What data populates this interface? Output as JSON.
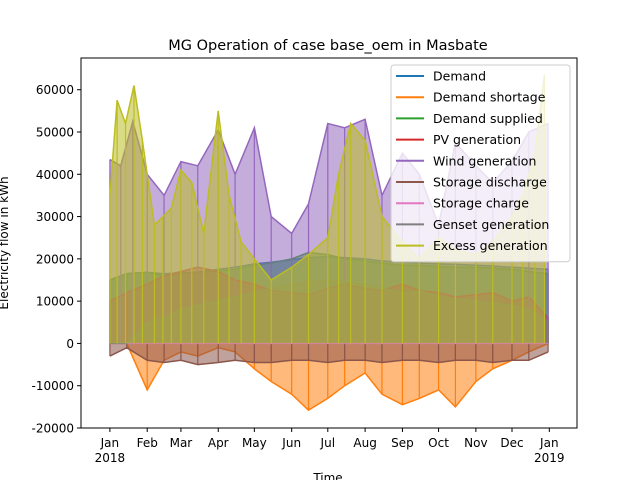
{
  "chart_data": {
    "type": "line",
    "title": "MG Operation of case base_oem in Masbate",
    "xlabel": "Time",
    "ylabel": "Electricity flow in kWh",
    "xlim": [
      "2017-12-08",
      "2019-01-24"
    ],
    "ylim": [
      -20000,
      67500
    ],
    "y_ticks": [
      -20000,
      -10000,
      0,
      10000,
      20000,
      30000,
      40000,
      50000,
      60000
    ],
    "x_tick_labels": [
      {
        "date": "2018-01-01",
        "label": "Jan",
        "sublabel": "2018"
      },
      {
        "date": "2018-02-01",
        "label": "Feb",
        "sublabel": ""
      },
      {
        "date": "2018-03-01",
        "label": "Mar",
        "sublabel": ""
      },
      {
        "date": "2018-04-01",
        "label": "Apr",
        "sublabel": ""
      },
      {
        "date": "2018-05-01",
        "label": "May",
        "sublabel": ""
      },
      {
        "date": "2018-06-01",
        "label": "Jun",
        "sublabel": ""
      },
      {
        "date": "2018-07-01",
        "label": "Jul",
        "sublabel": ""
      },
      {
        "date": "2018-08-01",
        "label": "Aug",
        "sublabel": ""
      },
      {
        "date": "2018-09-01",
        "label": "Sep",
        "sublabel": ""
      },
      {
        "date": "2018-10-01",
        "label": "Oct",
        "sublabel": ""
      },
      {
        "date": "2018-11-01",
        "label": "Nov",
        "sublabel": ""
      },
      {
        "date": "2018-12-01",
        "label": "Dec",
        "sublabel": ""
      },
      {
        "date": "2019-01-01",
        "label": "Jan",
        "sublabel": "2019"
      }
    ],
    "grid": false,
    "legend_position": "top-right",
    "series": [
      {
        "name": "Demand",
        "color": "#1f77b4",
        "dates": [
          "2018-01-01",
          "2018-01-15",
          "2018-02-01",
          "2018-02-15",
          "2018-03-01",
          "2018-03-15",
          "2018-04-01",
          "2018-04-15",
          "2018-05-01",
          "2018-05-15",
          "2018-06-01",
          "2018-06-15",
          "2018-07-01",
          "2018-07-15",
          "2018-08-01",
          "2018-08-15",
          "2018-09-01",
          "2018-09-15",
          "2018-10-01",
          "2018-10-15",
          "2018-11-01",
          "2018-11-15",
          "2018-12-01",
          "2018-12-15",
          "2018-12-31"
        ],
        "values": [
          15000,
          16500,
          16800,
          16500,
          16700,
          16900,
          17500,
          18000,
          18800,
          19200,
          19800,
          20300,
          20500,
          20300,
          20000,
          19500,
          19200,
          19000,
          18800,
          18700,
          18500,
          18300,
          18000,
          17800,
          17500
        ]
      },
      {
        "name": "Demand shortage",
        "color": "#ff7f0e",
        "dates": [
          "2018-01-01",
          "2018-01-15",
          "2018-02-01",
          "2018-02-15",
          "2018-03-01",
          "2018-03-15",
          "2018-04-01",
          "2018-04-15",
          "2018-05-01",
          "2018-05-15",
          "2018-06-01",
          "2018-06-15",
          "2018-07-01",
          "2018-07-15",
          "2018-08-01",
          "2018-08-15",
          "2018-09-01",
          "2018-09-15",
          "2018-10-01",
          "2018-10-15",
          "2018-11-01",
          "2018-11-15",
          "2018-12-01",
          "2018-12-15",
          "2018-12-31"
        ],
        "values": [
          0,
          0,
          -11000,
          -4000,
          -2000,
          -3000,
          -1000,
          -2000,
          -6000,
          -9000,
          -12000,
          -15800,
          -13000,
          -10000,
          -7000,
          -12000,
          -14500,
          -13000,
          -11000,
          -15000,
          -9000,
          -6000,
          -4000,
          -2000,
          0
        ]
      },
      {
        "name": "Demand supplied",
        "color": "#2ca02c",
        "dates": [
          "2018-01-01",
          "2018-01-15",
          "2018-02-01",
          "2018-02-15",
          "2018-03-01",
          "2018-03-15",
          "2018-04-01",
          "2018-04-15",
          "2018-05-01",
          "2018-05-15",
          "2018-06-01",
          "2018-06-15",
          "2018-07-01",
          "2018-07-15",
          "2018-08-01",
          "2018-08-15",
          "2018-09-01",
          "2018-09-15",
          "2018-10-01",
          "2018-10-15",
          "2018-11-01",
          "2018-11-15",
          "2018-12-01",
          "2018-12-15",
          "2018-12-31"
        ],
        "values": [
          15000,
          16500,
          16800,
          16000,
          16500,
          16800,
          17200,
          17500,
          18500,
          19000,
          20000,
          21500,
          21000,
          20000,
          19500,
          19000,
          18500,
          18500,
          18200,
          18000,
          18000,
          17800,
          17500,
          17000,
          16500
        ]
      },
      {
        "name": "PV generation",
        "color": "#d62728",
        "dates": [
          "2018-01-01",
          "2018-01-15",
          "2018-02-01",
          "2018-02-15",
          "2018-03-01",
          "2018-03-15",
          "2018-04-01",
          "2018-04-15",
          "2018-05-01",
          "2018-05-15",
          "2018-06-01",
          "2018-06-15",
          "2018-07-01",
          "2018-07-15",
          "2018-08-01",
          "2018-08-15",
          "2018-09-01",
          "2018-09-15",
          "2018-10-01",
          "2018-10-15",
          "2018-11-01",
          "2018-11-15",
          "2018-12-01",
          "2018-12-15",
          "2018-12-31"
        ],
        "values": [
          10000,
          12000,
          14000,
          16000,
          17000,
          18000,
          17000,
          15000,
          14000,
          12500,
          12000,
          11500,
          13000,
          14000,
          13000,
          12500,
          14000,
          12500,
          12000,
          11000,
          11500,
          12000,
          10000,
          11000,
          6000
        ]
      },
      {
        "name": "Wind generation",
        "color": "#9467bd",
        "dates": [
          "2018-01-01",
          "2018-01-10",
          "2018-01-20",
          "2018-02-01",
          "2018-02-15",
          "2018-03-01",
          "2018-03-15",
          "2018-04-01",
          "2018-04-15",
          "2018-05-01",
          "2018-05-15",
          "2018-06-01",
          "2018-06-15",
          "2018-07-01",
          "2018-07-15",
          "2018-08-01",
          "2018-08-15",
          "2018-09-01",
          "2018-09-15",
          "2018-10-01",
          "2018-10-15",
          "2018-11-01",
          "2018-11-15",
          "2018-12-01",
          "2018-12-15",
          "2018-12-31"
        ],
        "values": [
          43500,
          42000,
          52500,
          40000,
          35000,
          43000,
          42000,
          50500,
          40000,
          51000,
          30000,
          26000,
          33000,
          52000,
          51000,
          53000,
          35000,
          45000,
          40000,
          28000,
          47500,
          42000,
          38000,
          43000,
          50000,
          52000
        ]
      },
      {
        "name": "Storage discharge",
        "color": "#8c564b",
        "dates": [
          "2018-01-01",
          "2018-01-15",
          "2018-02-01",
          "2018-02-15",
          "2018-03-01",
          "2018-03-15",
          "2018-04-01",
          "2018-04-15",
          "2018-05-01",
          "2018-05-15",
          "2018-06-01",
          "2018-06-15",
          "2018-07-01",
          "2018-07-15",
          "2018-08-01",
          "2018-08-15",
          "2018-09-01",
          "2018-09-15",
          "2018-10-01",
          "2018-10-15",
          "2018-11-01",
          "2018-11-15",
          "2018-12-01",
          "2018-12-15",
          "2018-12-31"
        ],
        "values": [
          -3000,
          -1000,
          -4000,
          -4500,
          -4000,
          -5000,
          -4500,
          -4000,
          -4500,
          -4500,
          -4000,
          -4000,
          -4500,
          -4000,
          -4000,
          -4500,
          -4000,
          -4000,
          -4500,
          -4000,
          -4000,
          -4500,
          -4000,
          -4000,
          -2000
        ]
      },
      {
        "name": "Storage charge",
        "color": "#e377c2",
        "dates": [
          "2018-01-01",
          "2018-03-01",
          "2018-06-01",
          "2018-09-01",
          "2018-12-31"
        ],
        "values": [
          0,
          0,
          0,
          0,
          0
        ]
      },
      {
        "name": "Genset generation",
        "color": "#7f7f7f",
        "dates": [
          "2018-01-01",
          "2018-01-15",
          "2018-02-01",
          "2018-02-15",
          "2018-03-01",
          "2018-03-15",
          "2018-04-01",
          "2018-04-15",
          "2018-05-01",
          "2018-05-15",
          "2018-06-01",
          "2018-06-15",
          "2018-07-01",
          "2018-07-15",
          "2018-08-01",
          "2018-08-15",
          "2018-09-01",
          "2018-09-15",
          "2018-10-01",
          "2018-10-15",
          "2018-11-01",
          "2018-11-15",
          "2018-12-01",
          "2018-12-15",
          "2018-12-31"
        ],
        "values": [
          0,
          0,
          5000,
          6000,
          8000,
          9000,
          10000,
          11000,
          12000,
          13000,
          14000,
          14500,
          15000,
          14500,
          14000,
          13000,
          12000,
          12500,
          11000,
          10500,
          10000,
          9500,
          9000,
          8000,
          5000
        ]
      },
      {
        "name": "Excess generation",
        "color": "#bcbd22",
        "dates": [
          "2018-01-01",
          "2018-01-07",
          "2018-01-14",
          "2018-01-21",
          "2018-01-28",
          "2018-02-07",
          "2018-02-14",
          "2018-02-21",
          "2018-03-01",
          "2018-03-10",
          "2018-03-20",
          "2018-04-01",
          "2018-04-10",
          "2018-04-20",
          "2018-05-01",
          "2018-05-15",
          "2018-06-01",
          "2018-06-15",
          "2018-07-01",
          "2018-07-10",
          "2018-07-20",
          "2018-08-01",
          "2018-08-15",
          "2018-09-01",
          "2018-09-15",
          "2018-10-01",
          "2018-10-15",
          "2018-11-01",
          "2018-11-15",
          "2018-12-01",
          "2018-12-10",
          "2018-12-20",
          "2018-12-28"
        ],
        "values": [
          35000,
          57500,
          52000,
          61000,
          48000,
          28000,
          30000,
          32000,
          41000,
          38000,
          26000,
          55000,
          35000,
          24000,
          20000,
          15000,
          18000,
          21000,
          25000,
          40000,
          52000,
          48000,
          30000,
          24000,
          20000,
          25000,
          22000,
          21000,
          24000,
          30000,
          35000,
          45000,
          63500
        ]
      }
    ]
  }
}
